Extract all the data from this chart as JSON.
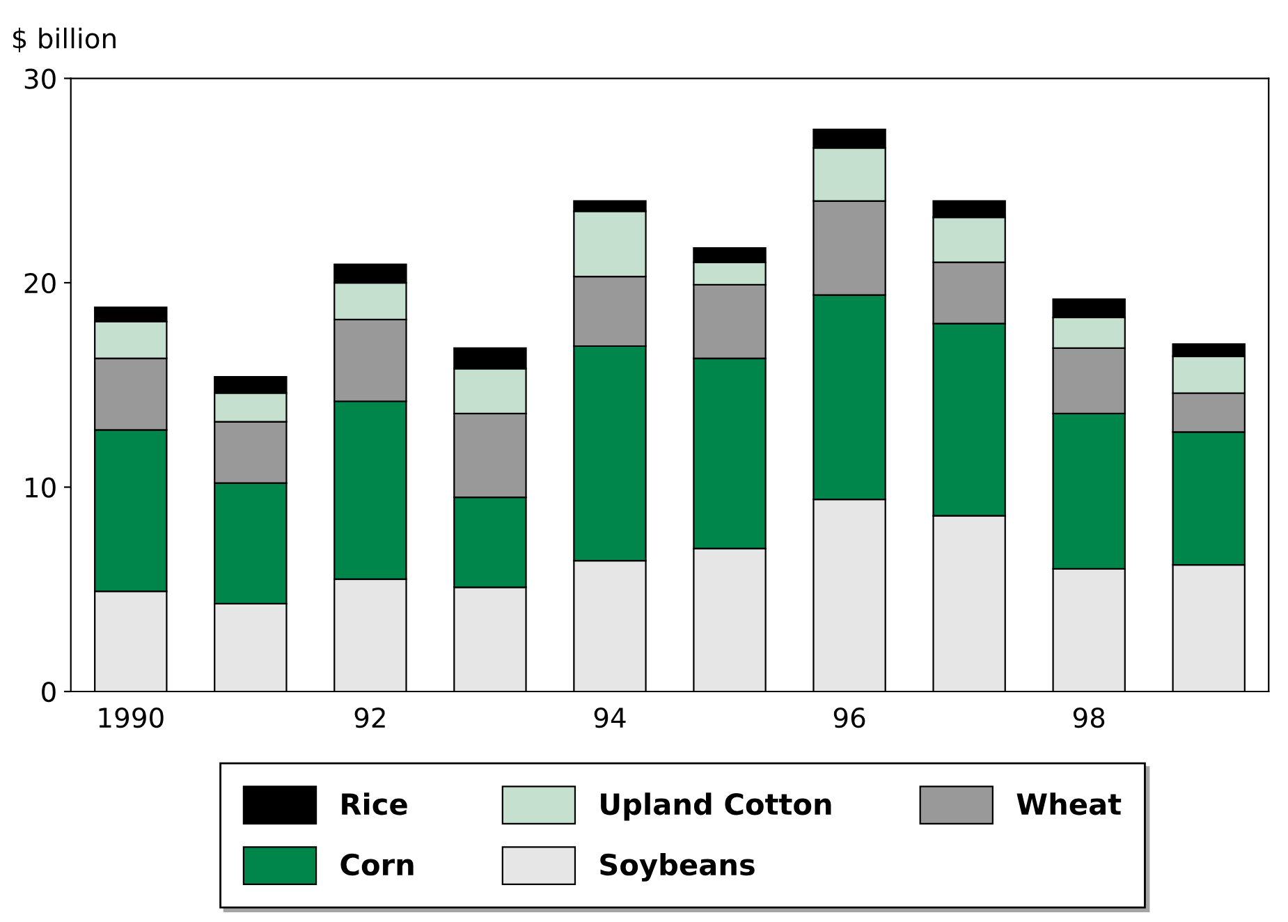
{
  "chart_data": {
    "type": "bar",
    "stacked": true,
    "ylabel": "$ billion",
    "categories": [
      "1990",
      null,
      "92",
      null,
      "94",
      null,
      "96",
      null,
      "98",
      null
    ],
    "series": [
      {
        "name": "Soybeans",
        "color": "#e6e6e6",
        "values": [
          4.9,
          4.3,
          5.5,
          5.1,
          6.4,
          7.0,
          9.4,
          8.6,
          6.0,
          6.2
        ]
      },
      {
        "name": "Corn",
        "color": "#00854a",
        "values": [
          7.9,
          5.9,
          8.7,
          4.4,
          10.5,
          9.3,
          10.0,
          9.4,
          7.6,
          6.5
        ]
      },
      {
        "name": "Wheat",
        "color": "#999999",
        "values": [
          3.5,
          3.0,
          4.0,
          4.1,
          3.4,
          3.6,
          4.6,
          3.0,
          3.2,
          1.9
        ]
      },
      {
        "name": "Upland Cotton",
        "color": "#c5e0cf",
        "values": [
          1.8,
          1.4,
          1.8,
          2.2,
          3.2,
          1.1,
          2.6,
          2.2,
          1.5,
          1.8
        ]
      },
      {
        "name": "Rice",
        "color": "#000000",
        "values": [
          0.7,
          0.8,
          0.9,
          1.0,
          0.5,
          0.7,
          0.9,
          0.8,
          0.9,
          0.6
        ]
      }
    ],
    "ylim": [
      0,
      30
    ],
    "yticks": [
      0,
      10,
      20,
      30
    ],
    "grid": false,
    "legend": "bottom"
  }
}
